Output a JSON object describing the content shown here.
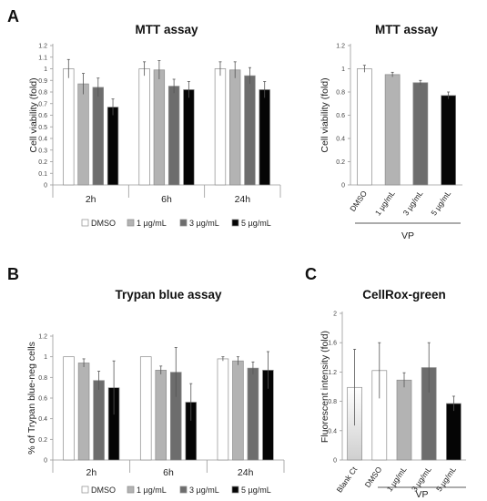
{
  "panel_labels": [
    "A",
    "B",
    "C"
  ],
  "bar_colors": {
    "DMSO": "#ffffff",
    "1 µg/mL": "#b3b3b3",
    "3 µg/mL": "#6d6d6d",
    "5 µg/mL": "#050505",
    "Blank Ct": "#cfcfcf",
    "outline": "#8c8c8c"
  },
  "legend": [
    "DMSO",
    "1 µg/mL",
    "3 µg/mL",
    "5 µg/mL"
  ],
  "chart_data": [
    {
      "id": "mtt-timecourse",
      "panel": "A",
      "type": "bar",
      "title": "MTT assay",
      "ylabel": "Cell viability (fold)",
      "ylim": [
        0,
        1.2
      ],
      "yticks": [
        "0",
        "0.1",
        "0.2",
        "0.3",
        "0.4",
        "0.5",
        "0.6",
        "0.7",
        "0.8",
        "0.9",
        "1",
        "1.1",
        "1.2"
      ],
      "categories": [
        "2h",
        "6h",
        "24h"
      ],
      "series": [
        {
          "name": "DMSO",
          "values": [
            1.0,
            1.0,
            1.0
          ],
          "errors": [
            0.08,
            0.06,
            0.06
          ]
        },
        {
          "name": "1 µg/mL",
          "values": [
            0.87,
            0.99,
            0.99
          ],
          "errors": [
            0.09,
            0.08,
            0.07
          ]
        },
        {
          "name": "3 µg/mL",
          "values": [
            0.84,
            0.85,
            0.94
          ],
          "errors": [
            0.08,
            0.06,
            0.07
          ]
        },
        {
          "name": "5 µg/mL",
          "values": [
            0.67,
            0.82,
            0.82
          ],
          "errors": [
            0.07,
            0.07,
            0.07
          ]
        }
      ]
    },
    {
      "id": "mtt-vp",
      "panel": "A",
      "type": "bar",
      "title": "MTT assay",
      "ylabel": "Cell viability (fold)",
      "ylim": [
        0,
        1.2
      ],
      "yticks": [
        "0",
        "0.2",
        "0.4",
        "0.6",
        "0.8",
        "1",
        "1.2"
      ],
      "categories": [
        "DMSO",
        "1 µg/mL",
        "3 µg/mL",
        "5 µg/mL"
      ],
      "group_label": "VP",
      "values": [
        1.0,
        0.95,
        0.88,
        0.77
      ],
      "errors": [
        0.03,
        0.02,
        0.02,
        0.03
      ]
    },
    {
      "id": "trypan",
      "panel": "B",
      "type": "bar",
      "title": "Trypan blue assay",
      "ylabel": "% of Trypan blue-neg cells",
      "ylim": [
        0,
        1.2
      ],
      "yticks": [
        "0",
        "0.2",
        "0.4",
        "0.6",
        "0.8",
        "1",
        "1.2"
      ],
      "categories": [
        "2h",
        "6h",
        "24h"
      ],
      "series": [
        {
          "name": "DMSO",
          "values": [
            1.0,
            1.0,
            0.98
          ],
          "errors": [
            0.0,
            0.0,
            0.02
          ]
        },
        {
          "name": "1 µg/mL",
          "values": [
            0.94,
            0.87,
            0.96
          ],
          "errors": [
            0.04,
            0.04,
            0.04
          ]
        },
        {
          "name": "3 µg/mL",
          "values": [
            0.77,
            0.85,
            0.89
          ],
          "errors": [
            0.09,
            0.24,
            0.06
          ]
        },
        {
          "name": "5 µg/mL",
          "values": [
            0.7,
            0.56,
            0.87
          ],
          "errors": [
            0.26,
            0.18,
            0.18
          ]
        }
      ]
    },
    {
      "id": "cellrox",
      "panel": "C",
      "type": "bar",
      "title": "CellRox-green",
      "ylabel": "Fluorescent intensity (fold)",
      "ylim": [
        0,
        2
      ],
      "yticks": [
        "0",
        "0.4",
        "0.8",
        "1.2",
        "1.6",
        "2"
      ],
      "categories": [
        "Blank Ct",
        "DMSO",
        "1 µg/mL",
        "3 µg/mL",
        "5 µg/mL"
      ],
      "group_label": "VP",
      "values": [
        0.99,
        1.22,
        1.09,
        1.26,
        0.77
      ],
      "errors": [
        0.52,
        0.38,
        0.1,
        0.34,
        0.1
      ]
    }
  ]
}
